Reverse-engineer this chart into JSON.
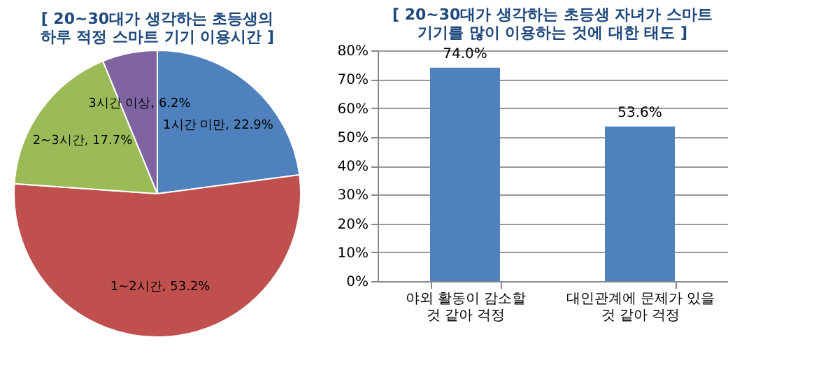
{
  "chart_data": [
    {
      "type": "pie",
      "title": "[ 20~30대가 생각하는 초등생의\n하루 적정 스마트 기기 이용시간 ]",
      "categories": [
        "1시간 미만",
        "1~2시간",
        "2~3시간",
        "3시간 이상"
      ],
      "values": [
        22.9,
        53.2,
        17.7,
        6.2
      ],
      "colors": [
        "#4f81bd",
        "#c0504d",
        "#9bbb59",
        "#8064a2"
      ],
      "value_labels": [
        "22.9%",
        "53.2%",
        "17.7%",
        "6.2%"
      ]
    },
    {
      "type": "bar",
      "title": "[ 20~30대가 생각하는 초등생 자녀가 스마트\n기기를 많이 이용하는 것에 대한 태도 ]",
      "categories": [
        "야외 활동이 감소할\n것 같아 걱정",
        "대인관계에 문제가 있을\n것 같아 걱정"
      ],
      "values": [
        74.0,
        53.6
      ],
      "color": "#4f81bd",
      "value_labels": [
        "74.0%",
        "53.6%"
      ],
      "ylim": [
        0,
        80
      ],
      "yticks": [
        {
          "value": 0,
          "label": "0%"
        },
        {
          "value": 10,
          "label": "10%"
        },
        {
          "value": 20,
          "label": "20%"
        },
        {
          "value": 30,
          "label": "30%"
        },
        {
          "value": 40,
          "label": "40%"
        },
        {
          "value": 50,
          "label": "50%"
        },
        {
          "value": 60,
          "label": "60%"
        },
        {
          "value": 70,
          "label": "70%"
        },
        {
          "value": 80,
          "label": "80%"
        }
      ],
      "grid": "y"
    }
  ]
}
